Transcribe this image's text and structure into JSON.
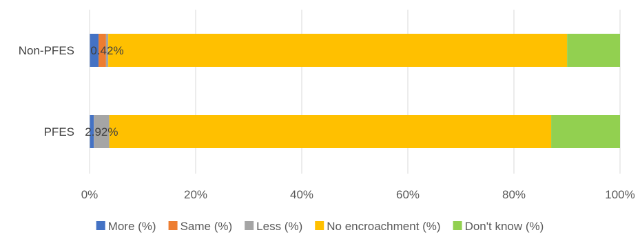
{
  "chart_data": {
    "type": "bar",
    "orientation": "horizontal",
    "stacked": "percent",
    "categories": [
      "Non-PFES",
      "PFES"
    ],
    "series": [
      {
        "name": "More (%)",
        "color": "#4472C4",
        "values": [
          1.7,
          0.8
        ]
      },
      {
        "name": "Same (%)",
        "color": "#ED7D31",
        "values": [
          1.4,
          0.0
        ]
      },
      {
        "name": "Less (%)",
        "color": "#A5A5A5",
        "values": [
          0.42,
          2.92
        ]
      },
      {
        "name": "No encroachment (%)",
        "color": "#FFC000",
        "values": [
          86.5,
          83.3
        ]
      },
      {
        "name": "Don't know (%)",
        "color": "#92D050",
        "values": [
          9.98,
          12.98
        ]
      }
    ],
    "data_labels": [
      "0.42%",
      "2.92%"
    ],
    "x_ticks": [
      "0%",
      "20%",
      "40%",
      "60%",
      "80%",
      "100%"
    ],
    "xlim": [
      0,
      100
    ],
    "grid": true,
    "legend_position": "bottom"
  }
}
